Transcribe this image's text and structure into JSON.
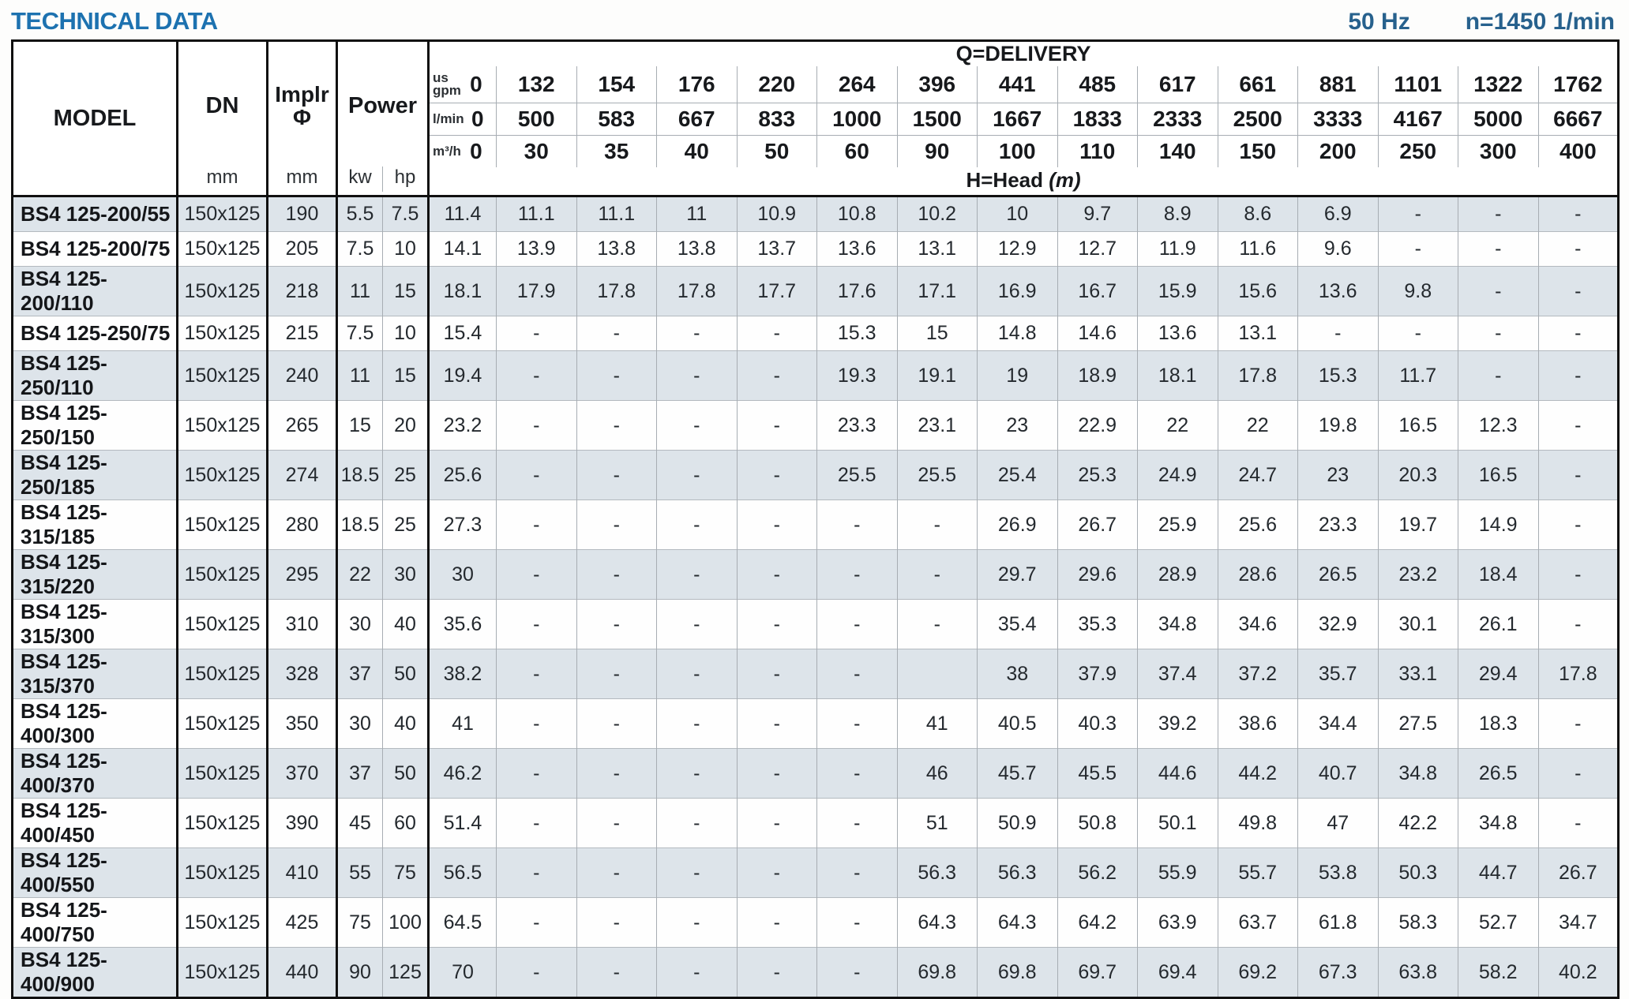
{
  "title": "TECHNICAL DATA",
  "frequency": "50 Hz",
  "speed": "n=1450 1/min",
  "colors": {
    "title_blue": "#1d72b0",
    "meta_blue": "#27618d",
    "row_stripe": "#dde4ea",
    "thick_border": "#101010",
    "thin_border": "#a7adb3"
  },
  "table": {
    "header": {
      "model": "MODEL",
      "dn": "DN",
      "implr_line1": "Implr",
      "implr_line2": "Φ",
      "power": "Power",
      "unit_mm_dn": "mm",
      "unit_mm_implr": "mm",
      "unit_kw": "kw",
      "unit_hp": "hp",
      "q_delivery": "Q=DELIVERY",
      "head_label": "H=Head",
      "head_unit": "(m)"
    },
    "flow_rows": [
      {
        "name": "us-gpm",
        "label_lines": [
          "us",
          "gpm"
        ],
        "values": [
          "0",
          "132",
          "154",
          "176",
          "220",
          "264",
          "396",
          "441",
          "485",
          "617",
          "661",
          "881",
          "1101",
          "1322",
          "1762"
        ]
      },
      {
        "name": "l-min",
        "label_lines": [
          "l/min"
        ],
        "values": [
          "0",
          "500",
          "583",
          "667",
          "833",
          "1000",
          "1500",
          "1667",
          "1833",
          "2333",
          "2500",
          "3333",
          "4167",
          "5000",
          "6667"
        ]
      },
      {
        "name": "m3-h",
        "label_lines": [
          "m³/h"
        ],
        "values": [
          "0",
          "30",
          "35",
          "40",
          "50",
          "60",
          "90",
          "100",
          "110",
          "140",
          "150",
          "200",
          "250",
          "300",
          "400"
        ]
      }
    ],
    "rows": [
      {
        "model": "BS4 125-200/55",
        "dn": "150x125",
        "implr": "190",
        "kw": "5.5",
        "hp": "7.5",
        "head": [
          "11.4",
          "11.1",
          "11.1",
          "11",
          "10.9",
          "10.8",
          "10.2",
          "10",
          "9.7",
          "8.9",
          "8.6",
          "6.9",
          "-",
          "-",
          "-"
        ]
      },
      {
        "model": "BS4 125-200/75",
        "dn": "150x125",
        "implr": "205",
        "kw": "7.5",
        "hp": "10",
        "head": [
          "14.1",
          "13.9",
          "13.8",
          "13.8",
          "13.7",
          "13.6",
          "13.1",
          "12.9",
          "12.7",
          "11.9",
          "11.6",
          "9.6",
          "-",
          "-",
          "-"
        ]
      },
      {
        "model": "BS4 125-200/110",
        "dn": "150x125",
        "implr": "218",
        "kw": "11",
        "hp": "15",
        "head": [
          "18.1",
          "17.9",
          "17.8",
          "17.8",
          "17.7",
          "17.6",
          "17.1",
          "16.9",
          "16.7",
          "15.9",
          "15.6",
          "13.6",
          "9.8",
          "-",
          "-"
        ]
      },
      {
        "model": "BS4 125-250/75",
        "dn": "150x125",
        "implr": "215",
        "kw": "7.5",
        "hp": "10",
        "head": [
          "15.4",
          "-",
          "-",
          "-",
          "-",
          "15.3",
          "15",
          "14.8",
          "14.6",
          "13.6",
          "13.1",
          "-",
          "-",
          "-",
          "-"
        ]
      },
      {
        "model": "BS4 125-250/110",
        "dn": "150x125",
        "implr": "240",
        "kw": "11",
        "hp": "15",
        "head": [
          "19.4",
          "-",
          "-",
          "-",
          "-",
          "19.3",
          "19.1",
          "19",
          "18.9",
          "18.1",
          "17.8",
          "15.3",
          "11.7",
          "-",
          "-"
        ]
      },
      {
        "model": "BS4 125-250/150",
        "dn": "150x125",
        "implr": "265",
        "kw": "15",
        "hp": "20",
        "head": [
          "23.2",
          "-",
          "-",
          "-",
          "-",
          "23.3",
          "23.1",
          "23",
          "22.9",
          "22",
          "22",
          "19.8",
          "16.5",
          "12.3",
          "-"
        ]
      },
      {
        "model": "BS4 125-250/185",
        "dn": "150x125",
        "implr": "274",
        "kw": "18.5",
        "hp": "25",
        "head": [
          "25.6",
          "-",
          "-",
          "-",
          "-",
          "25.5",
          "25.5",
          "25.4",
          "25.3",
          "24.9",
          "24.7",
          "23",
          "20.3",
          "16.5",
          "-"
        ]
      },
      {
        "model": "BS4 125-315/185",
        "dn": "150x125",
        "implr": "280",
        "kw": "18.5",
        "hp": "25",
        "head": [
          "27.3",
          "-",
          "-",
          "-",
          "-",
          "-",
          "-",
          "26.9",
          "26.7",
          "25.9",
          "25.6",
          "23.3",
          "19.7",
          "14.9",
          "-"
        ]
      },
      {
        "model": "BS4 125-315/220",
        "dn": "150x125",
        "implr": "295",
        "kw": "22",
        "hp": "30",
        "head": [
          "30",
          "-",
          "-",
          "-",
          "-",
          "-",
          "-",
          "29.7",
          "29.6",
          "28.9",
          "28.6",
          "26.5",
          "23.2",
          "18.4",
          "-"
        ]
      },
      {
        "model": "BS4 125-315/300",
        "dn": "150x125",
        "implr": "310",
        "kw": "30",
        "hp": "40",
        "head": [
          "35.6",
          "-",
          "-",
          "-",
          "-",
          "-",
          "-",
          "35.4",
          "35.3",
          "34.8",
          "34.6",
          "32.9",
          "30.1",
          "26.1",
          "-"
        ]
      },
      {
        "model": "BS4 125-315/370",
        "dn": "150x125",
        "implr": "328",
        "kw": "37",
        "hp": "50",
        "head": [
          "38.2",
          "-",
          "-",
          "-",
          "-",
          "-",
          "",
          "38",
          "37.9",
          "37.4",
          "37.2",
          "35.7",
          "33.1",
          "29.4",
          "17.8"
        ]
      },
      {
        "model": "BS4 125-400/300",
        "dn": "150x125",
        "implr": "350",
        "kw": "30",
        "hp": "40",
        "head": [
          "41",
          "-",
          "-",
          "-",
          "-",
          "-",
          "41",
          "40.5",
          "40.3",
          "39.2",
          "38.6",
          "34.4",
          "27.5",
          "18.3",
          "-"
        ]
      },
      {
        "model": "BS4 125-400/370",
        "dn": "150x125",
        "implr": "370",
        "kw": "37",
        "hp": "50",
        "head": [
          "46.2",
          "-",
          "-",
          "-",
          "-",
          "-",
          "46",
          "45.7",
          "45.5",
          "44.6",
          "44.2",
          "40.7",
          "34.8",
          "26.5",
          "-"
        ]
      },
      {
        "model": "BS4 125-400/450",
        "dn": "150x125",
        "implr": "390",
        "kw": "45",
        "hp": "60",
        "head": [
          "51.4",
          "-",
          "-",
          "-",
          "-",
          "-",
          "51",
          "50.9",
          "50.8",
          "50.1",
          "49.8",
          "47",
          "42.2",
          "34.8",
          "-"
        ]
      },
      {
        "model": "BS4 125-400/550",
        "dn": "150x125",
        "implr": "410",
        "kw": "55",
        "hp": "75",
        "head": [
          "56.5",
          "-",
          "-",
          "-",
          "-",
          "-",
          "56.3",
          "56.3",
          "56.2",
          "55.9",
          "55.7",
          "53.8",
          "50.3",
          "44.7",
          "26.7"
        ]
      },
      {
        "model": "BS4 125-400/750",
        "dn": "150x125",
        "implr": "425",
        "kw": "75",
        "hp": "100",
        "head": [
          "64.5",
          "-",
          "-",
          "-",
          "-",
          "-",
          "64.3",
          "64.3",
          "64.2",
          "63.9",
          "63.7",
          "61.8",
          "58.3",
          "52.7",
          "34.7"
        ]
      },
      {
        "model": "BS4 125-400/900",
        "dn": "150x125",
        "implr": "440",
        "kw": "90",
        "hp": "125",
        "head": [
          "70",
          "-",
          "-",
          "-",
          "-",
          "-",
          "69.8",
          "69.8",
          "69.7",
          "69.4",
          "69.2",
          "67.3",
          "63.8",
          "58.2",
          "40.2"
        ]
      }
    ]
  }
}
